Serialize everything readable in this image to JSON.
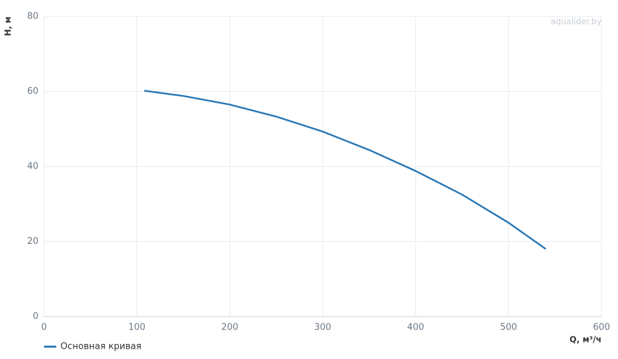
{
  "chart_data": {
    "type": "line",
    "xlabel": "Q, м³/ч",
    "ylabel": "H, м",
    "watermark": "aqualider.by",
    "x": [
      108,
      150,
      200,
      250,
      300,
      350,
      400,
      450,
      500,
      540
    ],
    "series": [
      {
        "name": "Основная кривая",
        "color": "#2a78b5",
        "values": [
          60.2,
          58.8,
          56.5,
          53.3,
          49.3,
          44.4,
          38.8,
          32.5,
          25,
          18
        ]
      }
    ],
    "xlim": [
      0,
      600
    ],
    "xticks": [
      0,
      100,
      200,
      300,
      400,
      500,
      600
    ],
    "ylim": [
      0,
      80
    ],
    "yticks": [
      0,
      20,
      40,
      60,
      80
    ],
    "grid": true,
    "legend": "bottom-left"
  }
}
